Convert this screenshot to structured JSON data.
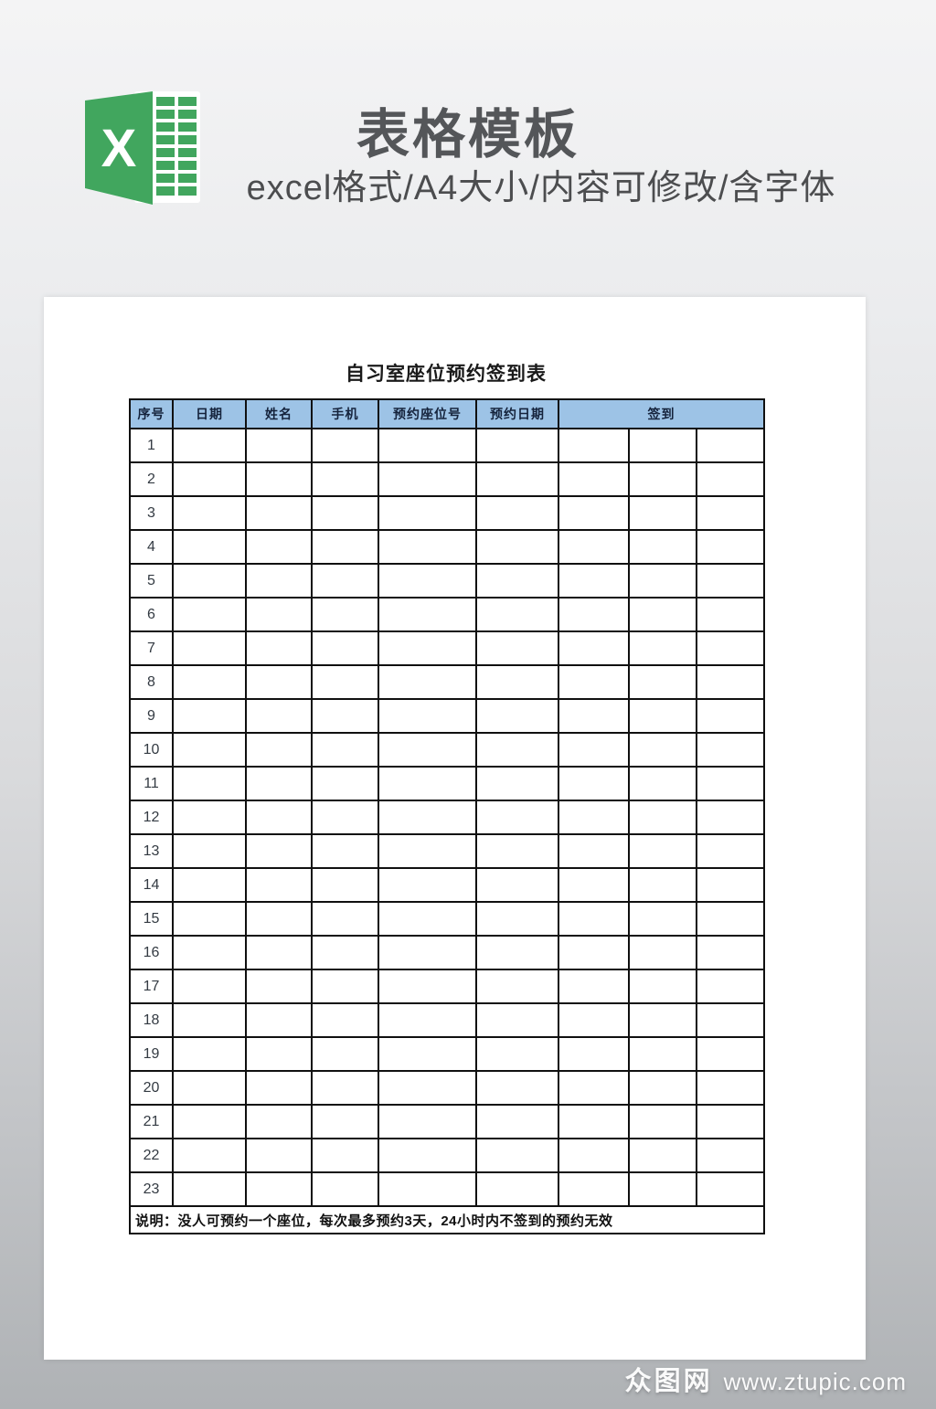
{
  "header": {
    "title": "表格模板",
    "subtitle": "excel格式/A4大小/内容可修改/含字体",
    "excel_icon_letter": "X"
  },
  "document": {
    "table_title": "自习室座位预约签到表",
    "columns": [
      "序号",
      "日期",
      "姓名",
      "手机",
      "预约座位号",
      "预约日期",
      "签到"
    ],
    "signin_header_colspan": 3,
    "rows": [
      "1",
      "2",
      "3",
      "4",
      "5",
      "6",
      "7",
      "8",
      "9",
      "10",
      "11",
      "12",
      "13",
      "14",
      "15",
      "16",
      "17",
      "18",
      "19",
      "20",
      "21",
      "22",
      "23"
    ],
    "empty_cells_per_row": 8,
    "note": "说明：没人可预约一个座位，每次最多预约3天，24小时内不签到的预约无效"
  },
  "watermark": {
    "site_name": "众图网",
    "site_url": "www.ztupic.com"
  },
  "colors": {
    "table_header_fill": "#9dc3e6",
    "excel_green": "#41a65e",
    "page_background": "#ffffff",
    "title_text": "#545659",
    "table_border": "#101010",
    "backdrop_top": "#f4f4f5",
    "backdrop_bottom": "#afb2b5"
  }
}
